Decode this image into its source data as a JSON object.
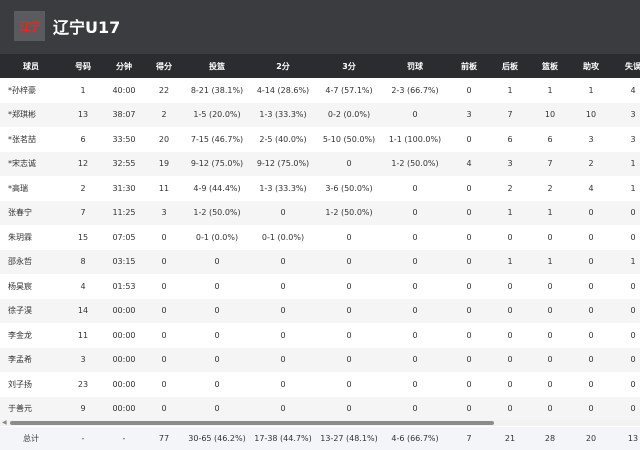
{
  "header": {
    "logo_text": "辽宁",
    "team_name": "辽宁U17"
  },
  "columns": [
    "球员",
    "号码",
    "分钟",
    "得分",
    "投篮",
    "2分",
    "3分",
    "罚球",
    "前板",
    "后板",
    "篮板",
    "助攻",
    "失误"
  ],
  "rows": [
    [
      "*孙梓豪",
      "1",
      "40:00",
      "22",
      "8-21 (38.1%)",
      "4-14 (28.6%)",
      "4-7 (57.1%)",
      "2-3 (66.7%)",
      "0",
      "1",
      "1",
      "1",
      "4"
    ],
    [
      "*郑琪彬",
      "13",
      "38:07",
      "2",
      "1-5 (20.0%)",
      "1-3 (33.3%)",
      "0-2 (0.0%)",
      "0",
      "3",
      "7",
      "10",
      "10",
      "3"
    ],
    [
      "*张茗喆",
      "6",
      "33:50",
      "20",
      "7-15 (46.7%)",
      "2-5 (40.0%)",
      "5-10 (50.0%)",
      "1-1 (100.0%)",
      "0",
      "6",
      "6",
      "3",
      "3"
    ],
    [
      "*宋志诚",
      "12",
      "32:55",
      "19",
      "9-12 (75.0%)",
      "9-12 (75.0%)",
      "0",
      "1-2 (50.0%)",
      "4",
      "3",
      "7",
      "2",
      "1"
    ],
    [
      "*高瑞",
      "2",
      "31:30",
      "11",
      "4-9 (44.4%)",
      "1-3 (33.3%)",
      "3-6 (50.0%)",
      "0",
      "0",
      "2",
      "2",
      "4",
      "1"
    ],
    [
      "张春宁",
      "7",
      "11:25",
      "3",
      "1-2 (50.0%)",
      "0",
      "1-2 (50.0%)",
      "0",
      "0",
      "1",
      "1",
      "0",
      "0"
    ],
    [
      "朱玥霖",
      "15",
      "07:05",
      "0",
      "0-1 (0.0%)",
      "0-1 (0.0%)",
      "0",
      "0",
      "0",
      "0",
      "0",
      "0",
      "0"
    ],
    [
      "邵永哲",
      "8",
      "03:15",
      "0",
      "0",
      "0",
      "0",
      "0",
      "0",
      "1",
      "1",
      "0",
      "1"
    ],
    [
      "杨昊宸",
      "4",
      "01:53",
      "0",
      "0",
      "0",
      "0",
      "0",
      "0",
      "0",
      "0",
      "0",
      "0"
    ],
    [
      "徐子淏",
      "14",
      "00:00",
      "0",
      "0",
      "0",
      "0",
      "0",
      "0",
      "0",
      "0",
      "0",
      "0"
    ],
    [
      "李金龙",
      "11",
      "00:00",
      "0",
      "0",
      "0",
      "0",
      "0",
      "0",
      "0",
      "0",
      "0",
      "0"
    ],
    [
      "李孟希",
      "3",
      "00:00",
      "0",
      "0",
      "0",
      "0",
      "0",
      "0",
      "0",
      "0",
      "0",
      "0"
    ],
    [
      "刘子扬",
      "23",
      "00:00",
      "0",
      "0",
      "0",
      "0",
      "0",
      "0",
      "0",
      "0",
      "0",
      "0"
    ],
    [
      "于善元",
      "9",
      "00:00",
      "0",
      "0",
      "0",
      "0",
      "0",
      "0",
      "0",
      "0",
      "0",
      "0"
    ]
  ],
  "total": [
    "总计",
    "-",
    "-",
    "77",
    "30-65 (46.2%)",
    "17-38 (44.7%)",
    "13-27 (48.1%)",
    "4-6 (66.7%)",
    "7",
    "21",
    "28",
    "20",
    "13"
  ],
  "colors": {
    "header_bg": "#3b3c3f",
    "table_header_bg": "#2a2c30",
    "logo_red": "#e8262a"
  }
}
